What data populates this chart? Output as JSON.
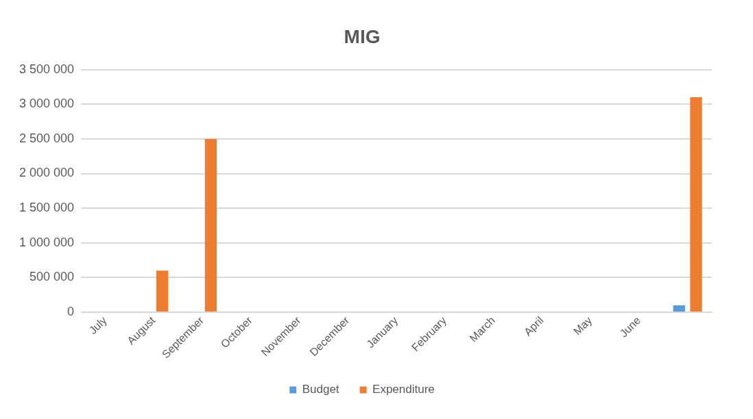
{
  "chart_data": {
    "type": "bar",
    "title": "MIG",
    "categories": [
      "July",
      "August",
      "September",
      "October",
      "November",
      "December",
      "January",
      "February",
      "March",
      "April",
      "May",
      "June",
      null
    ],
    "series": [
      {
        "name": "Budget",
        "color": "#5b9bd5",
        "values": [
          0,
          0,
          0,
          0,
          0,
          0,
          0,
          0,
          0,
          0,
          0,
          0,
          100000
        ]
      },
      {
        "name": "Expenditure",
        "color": "#ed7d31",
        "values": [
          0,
          600000,
          2500000,
          0,
          0,
          0,
          0,
          0,
          0,
          0,
          0,
          0,
          3100000
        ]
      }
    ],
    "ylim": [
      0,
      3500000
    ],
    "yticks": [
      {
        "value": 0,
        "label": "0"
      },
      {
        "value": 500000,
        "label": "500 000"
      },
      {
        "value": 1000000,
        "label": "1 000 000"
      },
      {
        "value": 1500000,
        "label": "1 500 000"
      },
      {
        "value": 2000000,
        "label": "2 000 000"
      },
      {
        "value": 2500000,
        "label": "2 500 000"
      },
      {
        "value": 3000000,
        "label": "3 000 000"
      },
      {
        "value": 3500000,
        "label": "3 500 000"
      }
    ],
    "grid": "y",
    "legend": "bottom"
  }
}
